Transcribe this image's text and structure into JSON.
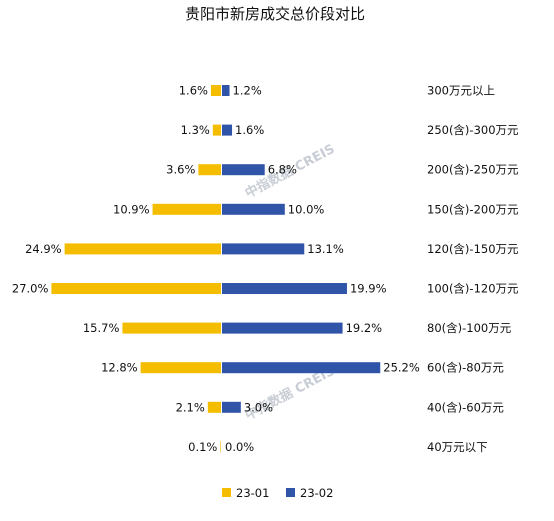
{
  "chart_data": {
    "type": "bar",
    "orientation": "horizontal-butterfly",
    "title": "贵阳市新房成交总价段对比",
    "categories": [
      "300万元以上",
      "250(含)-300万元",
      "200(含)-250万元",
      "150(含)-200万元",
      "120(含)-150万元",
      "100(含)-120万元",
      "80(含)-100万元",
      "60(含)-80万元",
      "40(含)-60万元",
      "40万元以下"
    ],
    "series": [
      {
        "name": "23-01",
        "color": "#f5bd00",
        "side": "left",
        "values": [
          1.6,
          1.3,
          3.6,
          10.9,
          24.9,
          27.0,
          15.7,
          12.8,
          2.1,
          0.1
        ],
        "labels": [
          "1.6%",
          "1.3%",
          "3.6%",
          "10.9%",
          "24.9%",
          "27.0%",
          "15.7%",
          "12.8%",
          "2.1%",
          "0.1%"
        ]
      },
      {
        "name": "23-02",
        "color": "#2f54a8",
        "side": "right",
        "values": [
          1.2,
          1.6,
          6.8,
          10.0,
          13.1,
          19.9,
          19.2,
          25.2,
          3.0,
          0.0
        ],
        "labels": [
          "1.2%",
          "1.6%",
          "6.8%",
          "10.0%",
          "13.1%",
          "19.9%",
          "19.2%",
          "25.2%",
          "3.0%",
          "0.0%"
        ]
      }
    ],
    "value_unit": "%",
    "legend_position": "bottom-left",
    "grid": false,
    "axis_ticks": false
  },
  "watermark": {
    "text": "中指数据 CREIS"
  }
}
